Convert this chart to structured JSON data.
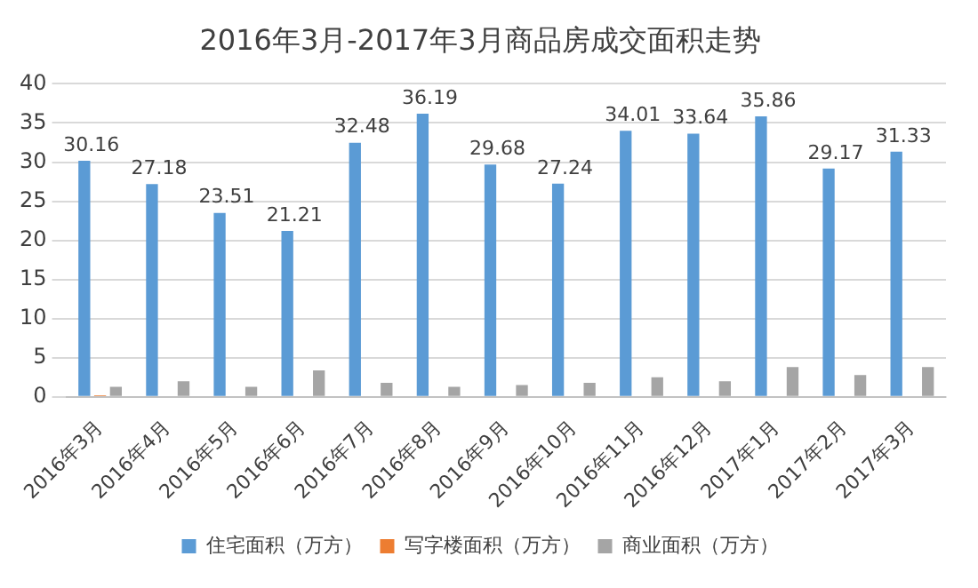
{
  "chart_data": {
    "type": "bar",
    "title": "2016年3月-2017年3月商品房成交面积走势",
    "categories": [
      "2016年3月",
      "2016年4月",
      "2016年5月",
      "2016年6月",
      "2016年7月",
      "2016年8月",
      "2016年9月",
      "2016年10月",
      "2016年11月",
      "2016年12月",
      "2017年1月",
      "2017年2月",
      "2017年3月"
    ],
    "series": [
      {
        "name": "住宅面积（万方）",
        "color": "#5b9bd5",
        "values": [
          30.16,
          27.18,
          23.51,
          21.21,
          32.48,
          36.19,
          29.68,
          27.24,
          34.01,
          33.64,
          35.86,
          29.17,
          31.33
        ],
        "value_labels": [
          "30.16",
          "27.18",
          "23.51",
          "21.21",
          "32.48",
          "36.19",
          "29.68",
          "27.24",
          "34.01",
          "33.64",
          "35.86",
          "29.17",
          "31.33"
        ]
      },
      {
        "name": "写字楼面积（万方）",
        "color": "#ed7d31",
        "values": [
          0.2,
          0,
          0,
          0,
          0,
          0,
          0,
          0,
          0,
          0,
          0,
          0,
          0
        ]
      },
      {
        "name": "商业面积（万方）",
        "color": "#a5a5a5",
        "values": [
          1.3,
          2.0,
          1.3,
          3.4,
          1.8,
          1.3,
          1.5,
          1.8,
          2.5,
          2.0,
          3.8,
          2.8,
          3.8
        ]
      }
    ],
    "ylim": [
      0,
      40
    ],
    "yticks": [
      0,
      5,
      10,
      15,
      20,
      25,
      30,
      35,
      40
    ],
    "grid": "y",
    "legend": "bottom"
  }
}
